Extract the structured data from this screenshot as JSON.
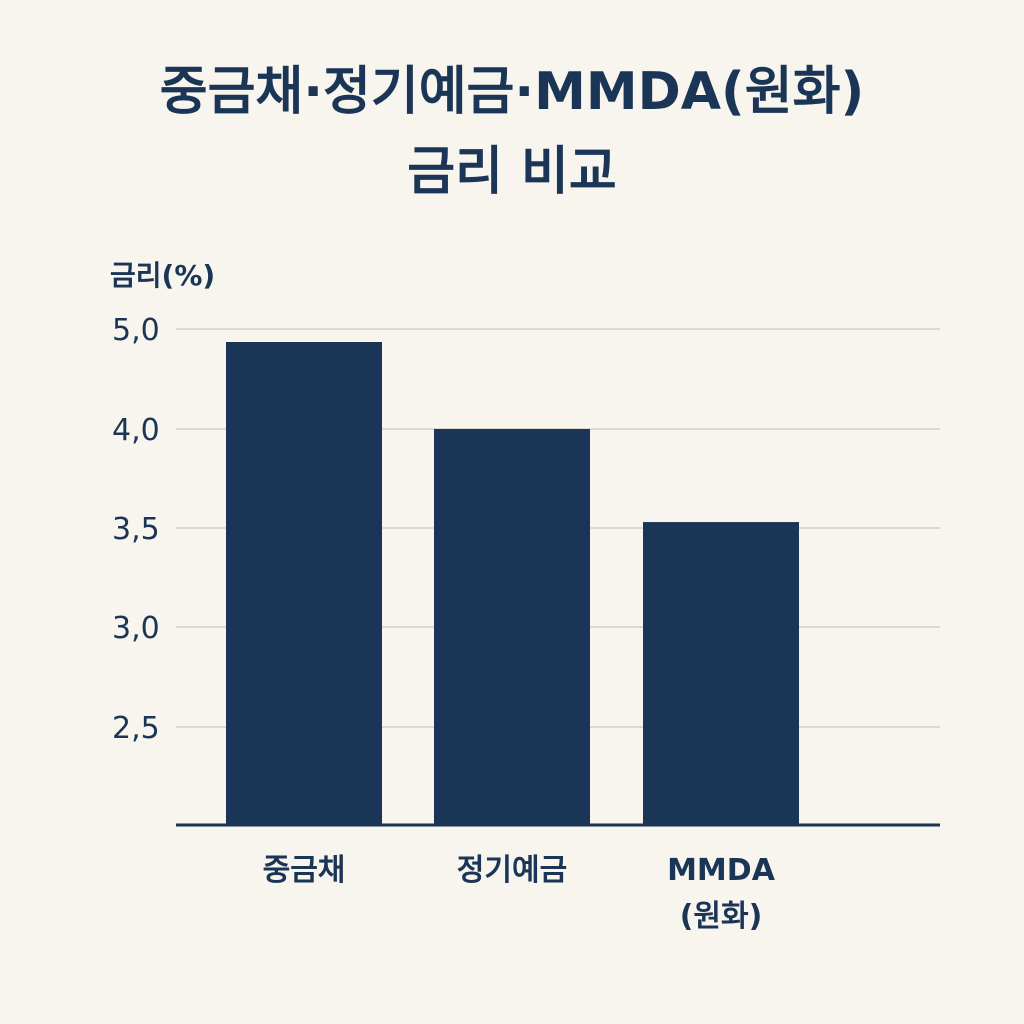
{
  "chart_data": {
    "type": "bar",
    "title_lines": [
      "중금채·정기예금·MMDA(원화)",
      "금리 비교"
    ],
    "ylabel": "금리(%)",
    "xlabel": "",
    "categories": [
      {
        "lines": [
          "중금채"
        ]
      },
      {
        "lines": [
          "정기예금"
        ]
      },
      {
        "lines": [
          "MMDA",
          "(원화)"
        ]
      }
    ],
    "values": [
      4.87,
      4.0,
      3.53
    ],
    "yticks": [
      {
        "value": 2.5,
        "label": "2,5"
      },
      {
        "value": 3.0,
        "label": "3,0"
      },
      {
        "value": 3.5,
        "label": "3,5"
      },
      {
        "value": 4.0,
        "label": "4,0"
      },
      {
        "value": 5.0,
        "label": "5,0"
      }
    ],
    "grid": true,
    "colors": {
      "bar": "#1b3556",
      "grid": "#dcd9d1",
      "axis": "#1b3556",
      "text": "#1b3556",
      "background": "#f8f5ef"
    }
  }
}
